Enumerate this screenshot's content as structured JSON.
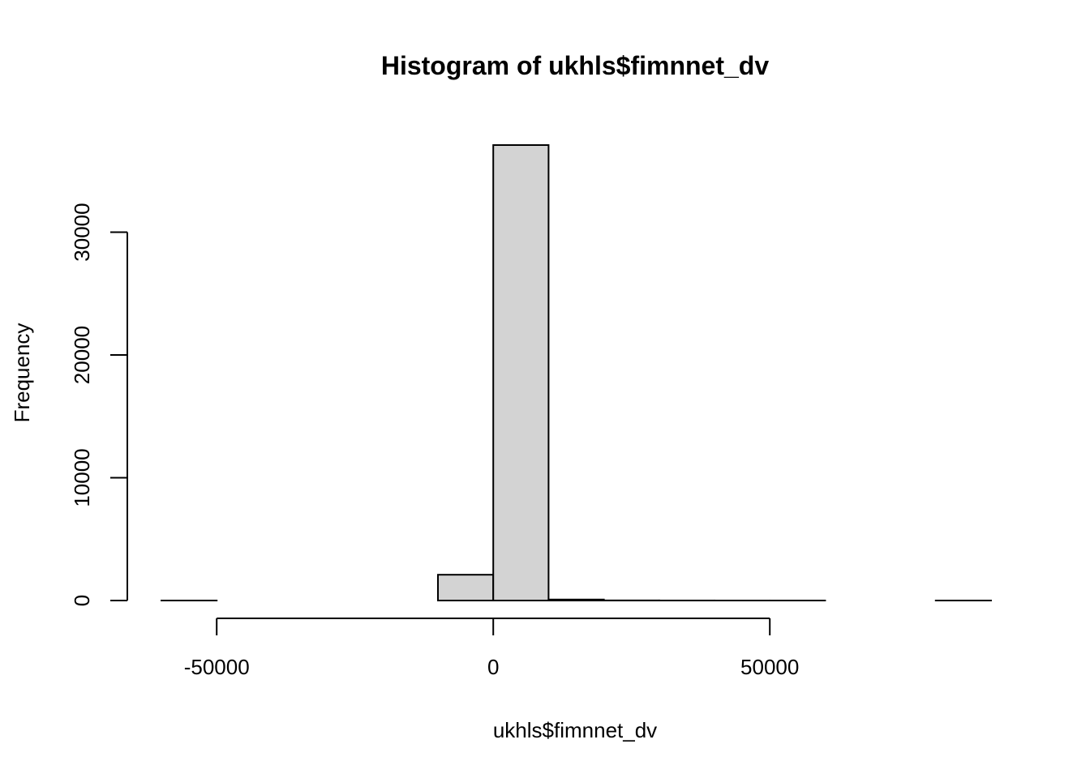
{
  "chart_data": {
    "type": "bar",
    "title": "Histogram of ukhls$fimnnet_dv",
    "xlabel": "ukhls$fimnnet_dv",
    "ylabel": "Frequency",
    "bins": [
      {
        "from": -60000,
        "to": -50000,
        "count": 1
      },
      {
        "from": -50000,
        "to": -40000,
        "count": 0
      },
      {
        "from": -40000,
        "to": -30000,
        "count": 0
      },
      {
        "from": -30000,
        "to": -20000,
        "count": 0
      },
      {
        "from": -20000,
        "to": -10000,
        "count": 0
      },
      {
        "from": -10000,
        "to": 0,
        "count": 2100
      },
      {
        "from": 0,
        "to": 10000,
        "count": 37100
      },
      {
        "from": 10000,
        "to": 20000,
        "count": 80
      },
      {
        "from": 20000,
        "to": 30000,
        "count": 10
      },
      {
        "from": 30000,
        "to": 40000,
        "count": 3
      },
      {
        "from": 40000,
        "to": 50000,
        "count": 1
      },
      {
        "from": 50000,
        "to": 60000,
        "count": 1
      },
      {
        "from": 60000,
        "to": 70000,
        "count": 0
      },
      {
        "from": 70000,
        "to": 80000,
        "count": 0
      },
      {
        "from": 80000,
        "to": 90000,
        "count": 1
      }
    ],
    "x_ticks": [
      -50000,
      0,
      50000
    ],
    "x_tick_labels": [
      "-50000",
      "0",
      "50000"
    ],
    "y_ticks": [
      0,
      10000,
      20000,
      30000
    ],
    "y_tick_labels": [
      "0",
      "10000",
      "20000",
      "30000"
    ],
    "xlim": [
      -60000,
      90000
    ],
    "ylim": [
      0,
      37100
    ],
    "bar_fill": "#d3d3d3",
    "bar_stroke": "#000000",
    "grid": false,
    "legend": "none"
  }
}
